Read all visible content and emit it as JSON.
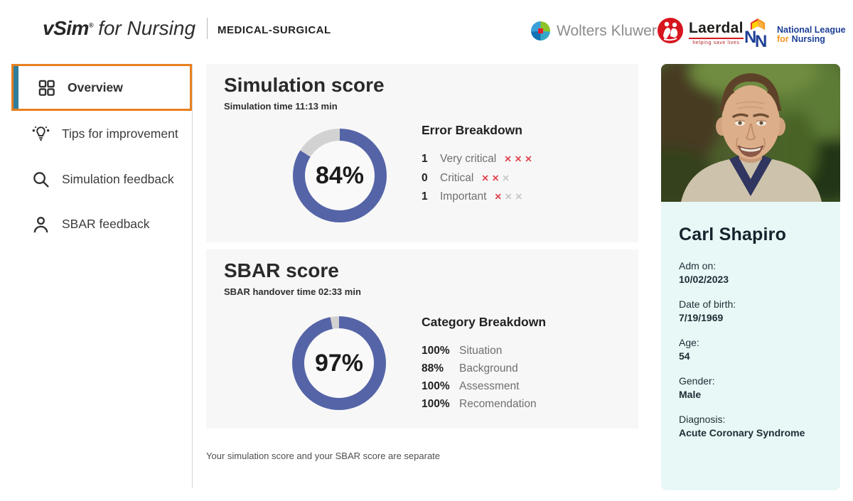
{
  "colors": {
    "donut_fill": "#5564a7",
    "donut_rest": "#d2d2d2",
    "accent_orange": "#e8801f",
    "accent_teal": "#2e7e9c",
    "mark_red": "#e0434c",
    "mark_gray": "#c7c7c7",
    "card_bg": "#f7f7f7",
    "patient_panel_bg": "#e8f8f6"
  },
  "header": {
    "brand": {
      "name": "vSim",
      "reg": "®",
      "suffix": "for Nursing",
      "division": "MEDICAL-SURGICAL"
    },
    "partners": {
      "wolters": "Wolters Kluwer",
      "laerdal": "Laerdal",
      "laerdal_tagline": "helping save lives",
      "nln_line1": "National League",
      "nln_for": "for",
      "nln_line2": "Nursing"
    }
  },
  "sidebar": {
    "items": [
      {
        "label": "Overview",
        "icon": "grid-icon",
        "selected": true
      },
      {
        "label": "Tips for improvement",
        "icon": "lightbulb-icon",
        "selected": false
      },
      {
        "label": "Simulation feedback",
        "icon": "search-icon",
        "selected": false
      },
      {
        "label": "SBAR feedback",
        "icon": "person-icon",
        "selected": false
      }
    ]
  },
  "main": {
    "simulation": {
      "title": "Simulation score",
      "subtitle": "Simulation time 11:13 min",
      "percent": 84,
      "percent_label": "84%",
      "breakdown_title": "Error Breakdown",
      "rows": [
        {
          "count": "1",
          "label": "Very critical",
          "marks": [
            "red",
            "red",
            "red"
          ]
        },
        {
          "count": "0",
          "label": "Critical",
          "marks": [
            "red",
            "red",
            "gray"
          ]
        },
        {
          "count": "1",
          "label": "Important",
          "marks": [
            "red",
            "gray",
            "gray"
          ]
        }
      ]
    },
    "sbar": {
      "title": "SBAR score",
      "subtitle": "SBAR handover time 02:33 min",
      "percent": 97,
      "percent_label": "97%",
      "breakdown_title": "Category Breakdown",
      "rows": [
        {
          "value": "100%",
          "label": "Situation"
        },
        {
          "value": "88%",
          "label": "Background"
        },
        {
          "value": "100%",
          "label": "Assessment"
        },
        {
          "value": "100%",
          "label": "Recomendation"
        }
      ]
    },
    "note": "Your simulation score and your SBAR score are separate"
  },
  "patient": {
    "name": "Carl Shapiro",
    "fields": [
      {
        "label": "Adm on:",
        "value": "10/02/2023"
      },
      {
        "label": "Date of birth:",
        "value": "7/19/1969"
      },
      {
        "label": "Age:",
        "value": "54"
      },
      {
        "label": "Gender:",
        "value": "Male"
      },
      {
        "label": "Diagnosis:",
        "value": "Acute Coronary Syndrome"
      }
    ]
  }
}
